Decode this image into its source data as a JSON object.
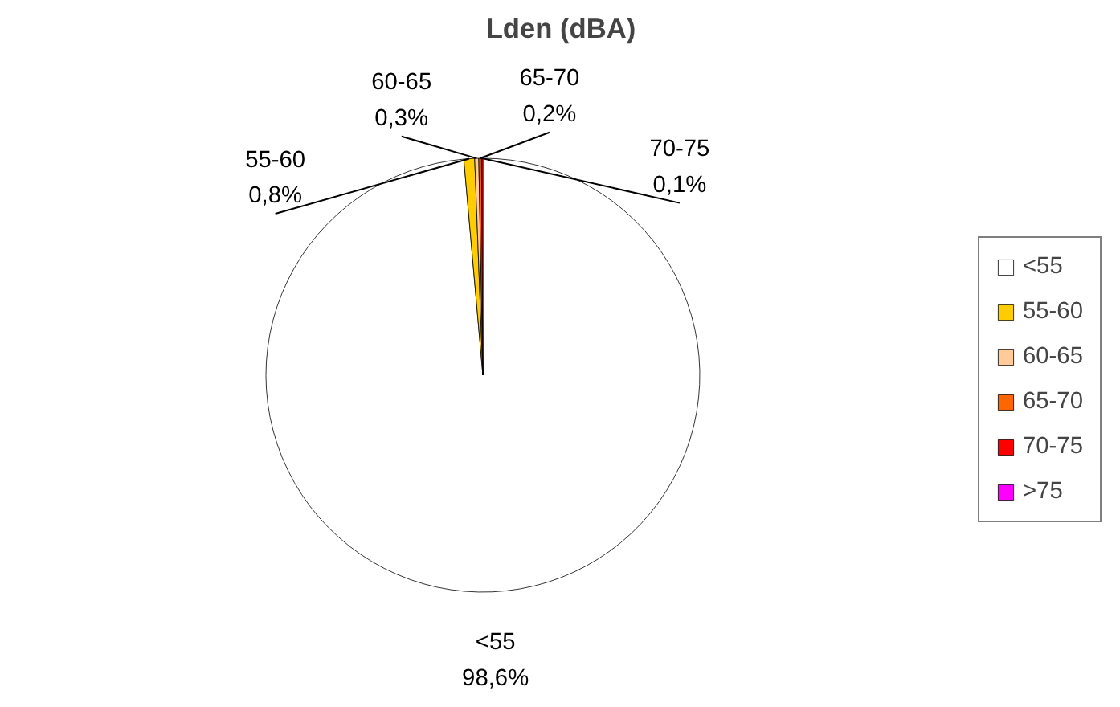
{
  "chart_data": {
    "type": "pie",
    "title": "Lden (dBA)",
    "categories": [
      "<55",
      "55-60",
      "60-65",
      "65-70",
      "70-75",
      ">75"
    ],
    "values": [
      98.6,
      0.8,
      0.3,
      0.2,
      0.1,
      0
    ],
    "value_labels": [
      "98,6%",
      "0,8%",
      "0,3%",
      "0,2%",
      "0,1%",
      null
    ],
    "colors": [
      "#ffffff",
      "#ffcc00",
      "#ffcc99",
      "#ff6600",
      "#ff0000",
      "#ff00ff"
    ],
    "legend": "right"
  }
}
